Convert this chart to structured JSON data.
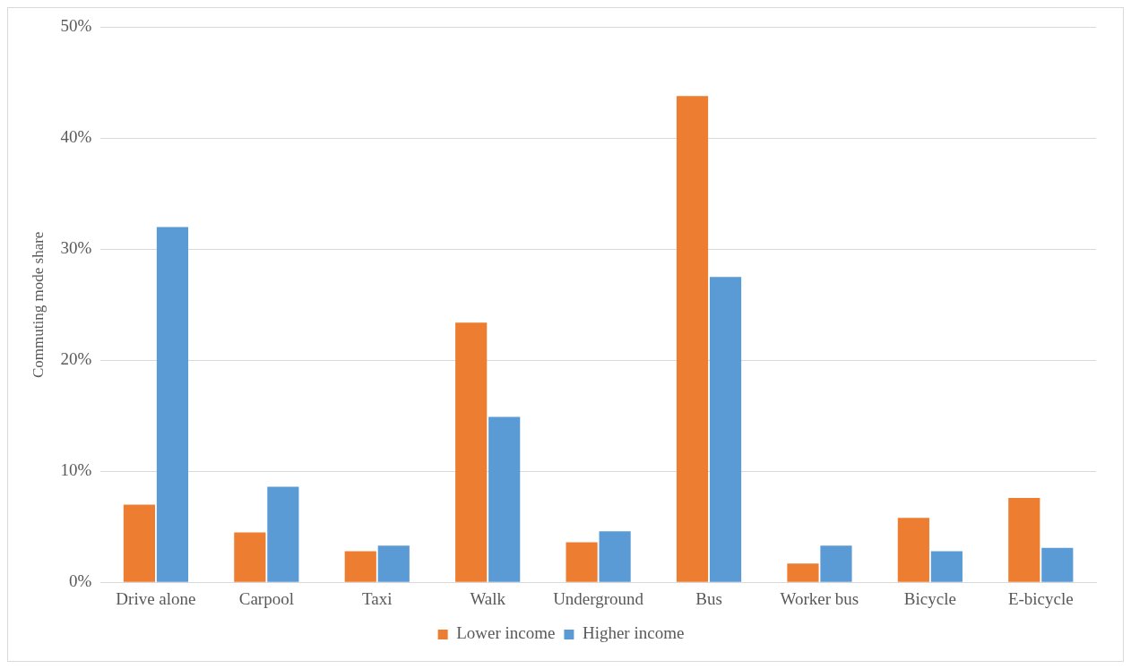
{
  "chart_data": {
    "type": "bar",
    "ylabel": "Commuting mode share",
    "categories": [
      "Drive alone",
      "Carpool",
      "Taxi",
      "Walk",
      "Underground",
      "Bus",
      "Worker bus",
      "Bicycle",
      "E-bicycle"
    ],
    "series": [
      {
        "name": "Lower income",
        "color": "#ed7d31",
        "values": [
          7.0,
          4.5,
          2.8,
          23.4,
          3.6,
          43.8,
          1.7,
          5.8,
          7.6
        ]
      },
      {
        "name": "Higher income",
        "color": "#5b9bd5",
        "values": [
          32.0,
          8.6,
          3.3,
          14.9,
          4.6,
          27.5,
          3.3,
          2.8,
          3.1
        ]
      }
    ],
    "ylim": [
      0,
      50
    ],
    "yticks": [
      {
        "value": 0,
        "label": "0%"
      },
      {
        "value": 10,
        "label": "10%"
      },
      {
        "value": 20,
        "label": "20%"
      },
      {
        "value": 30,
        "label": "30%"
      },
      {
        "value": 40,
        "label": "40%"
      },
      {
        "value": 50,
        "label": "50%"
      }
    ],
    "grid": "y",
    "legend": "bottom"
  }
}
